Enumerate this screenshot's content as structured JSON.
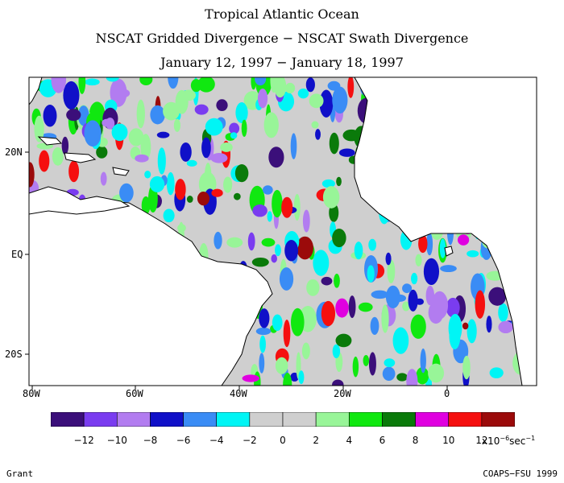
{
  "titles": {
    "line1": "Tropical Atlantic Ocean",
    "line2": "NSCAT Gridded Divergence − NSCAT Swath Divergence",
    "line3": "January 12, 1997 − January 18, 1997"
  },
  "axes": {
    "x_ticks": [
      "80W",
      "60W",
      "40W",
      "20W",
      "0"
    ],
    "y_ticks": [
      "20N",
      "EQ",
      "20S"
    ]
  },
  "colorbar": {
    "colors": [
      "#3b0f7a",
      "#7a3cf0",
      "#b27cf0",
      "#1010c8",
      "#3a8cf5",
      "#00f5f5",
      "#cfcfcf",
      "#cfcfcf",
      "#98f598",
      "#10e810",
      "#0a7a0a",
      "#e000e0",
      "#f50f0f",
      "#9b0a0a"
    ],
    "labels": [
      "−12",
      "−10",
      "−8",
      "−6",
      "−4",
      "−2",
      "0",
      "2",
      "4",
      "6",
      "8",
      "10",
      "12"
    ],
    "units_prefix": "x10",
    "units_exp": "−6",
    "units_suffix": "sec",
    "units_exp2": "−1"
  },
  "footer": {
    "left": "Grant",
    "right": "COAPS−FSU 1999"
  }
}
